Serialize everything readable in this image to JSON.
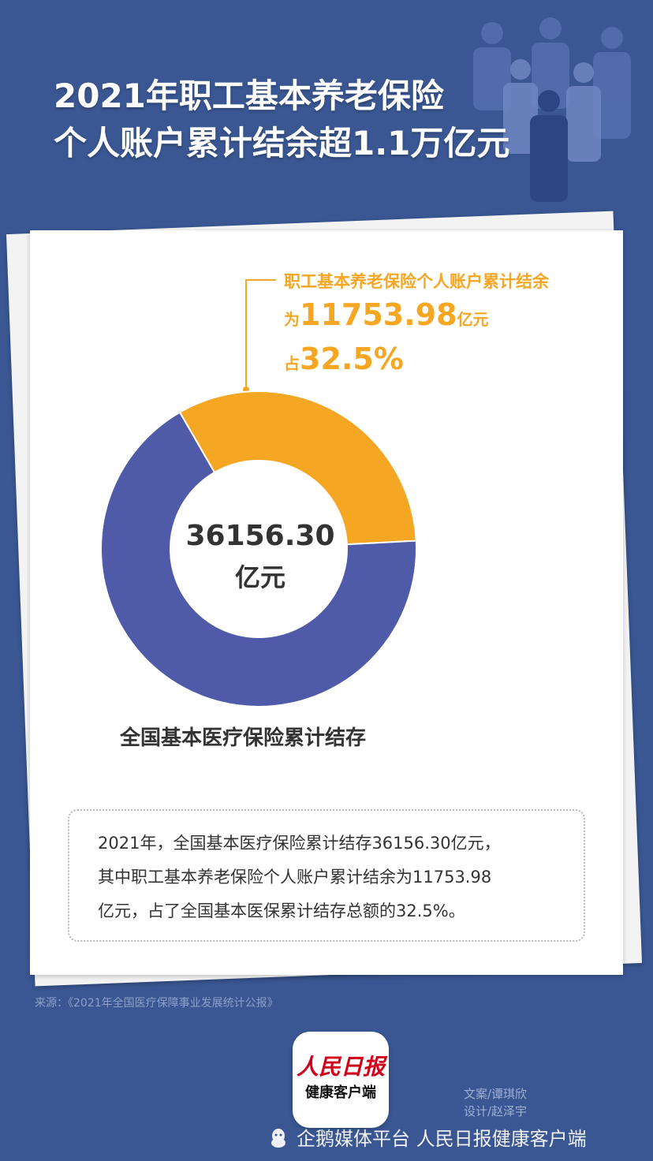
{
  "title": {
    "line1": "2021年职工基本养老保险",
    "line2": "个人账户累计结余超1.1万亿元"
  },
  "annotation": {
    "line1": "职工基本养老保险个人账户累计结余",
    "line2_prefix": "为",
    "line2_value": "11753.98",
    "line2_unit": "亿元",
    "line3_prefix": "占",
    "line3_value": "32.5%"
  },
  "center": {
    "value": "36156.30",
    "unit": "亿元"
  },
  "chart_label": "全国基本医疗保险累计结存",
  "summary": {
    "line1": "2021年，全国基本医疗保险累计结存36156.30亿元，",
    "line2": "其中职工基本养老保险个人账户累计结余为11753.98",
    "line3": "亿元，占了全国基本医保累计结存总额的32.5%。"
  },
  "source": "来源：《2021年全国医疗保障事业发展统计公报》",
  "logo": {
    "main": "人民日报",
    "sub": "健康客户端"
  },
  "credits": {
    "writer": "文案/谭琪欣",
    "designer": "设计/赵泽宇"
  },
  "platform": {
    "icon": "penguin-icon",
    "text": "企鹅媒体平台 人民日报健康客户端"
  },
  "colors": {
    "background": "#3a5793",
    "accent_orange": "#f5a623",
    "ring_purple": "#4f5aa8",
    "paper": "#ffffff"
  },
  "chart_data": {
    "type": "pie",
    "donut": true,
    "total": 36156.3,
    "unit": "亿元",
    "slices": [
      {
        "label": "职工基本养老保险个人账户累计结余",
        "value": 11753.98,
        "percent": 32.5,
        "color": "#f5a623"
      },
      {
        "label": "",
        "value": 24402.32,
        "percent": 67.5,
        "color": "#4f5aa8"
      }
    ],
    "start_angle_deg": -30
  }
}
